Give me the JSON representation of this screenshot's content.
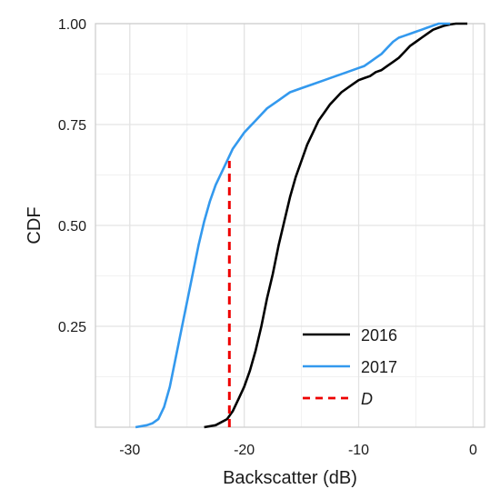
{
  "chart_data": {
    "type": "line",
    "title": "",
    "xlabel": "Backscatter (dB)",
    "ylabel": "CDF",
    "xlim": [
      -33,
      1
    ],
    "ylim": [
      0,
      1
    ],
    "grid": true,
    "legend_position": "bottom-right",
    "x_ticks": [
      -30,
      -20,
      -10,
      0
    ],
    "x_tick_labels": [
      "-30",
      "-20",
      "-10",
      "0"
    ],
    "y_ticks": [
      0.25,
      0.5,
      0.75,
      1.0
    ],
    "y_tick_labels": [
      "0.25",
      "0.50",
      "0.75",
      "1.00"
    ],
    "series": [
      {
        "name": "2016",
        "color": "#000000",
        "style": "solid",
        "x": [
          -23.5,
          -22.5,
          -21.5,
          -21,
          -20.5,
          -20,
          -19.5,
          -19,
          -18.5,
          -18,
          -17.5,
          -17,
          -16.5,
          -16,
          -15.5,
          -15,
          -14.5,
          -14,
          -13.5,
          -13,
          -12.5,
          -12,
          -11.5,
          -11,
          -10.5,
          -10,
          -9.5,
          -9,
          -8.5,
          -8,
          -7.5,
          -7,
          -6.5,
          -6,
          -5.5,
          -5,
          -4.5,
          -4,
          -3.5,
          -3,
          -2.5,
          -2,
          -1.5,
          -1,
          -0.5
        ],
        "y": [
          0.0,
          0.005,
          0.02,
          0.04,
          0.07,
          0.1,
          0.14,
          0.19,
          0.25,
          0.32,
          0.38,
          0.45,
          0.51,
          0.57,
          0.62,
          0.66,
          0.7,
          0.73,
          0.76,
          0.78,
          0.8,
          0.815,
          0.83,
          0.84,
          0.85,
          0.86,
          0.865,
          0.87,
          0.88,
          0.885,
          0.895,
          0.905,
          0.915,
          0.93,
          0.945,
          0.955,
          0.965,
          0.975,
          0.985,
          0.99,
          0.995,
          0.998,
          1.0,
          1.0,
          1.0
        ]
      },
      {
        "name": "2017",
        "color": "#3399ee",
        "style": "solid",
        "x": [
          -29.5,
          -28.5,
          -28,
          -27.5,
          -27,
          -26.5,
          -26,
          -25.5,
          -25,
          -24.5,
          -24,
          -23.5,
          -23,
          -22.5,
          -22,
          -21.5,
          -21,
          -20.5,
          -20,
          -19.5,
          -19,
          -18.5,
          -18,
          -17.5,
          -17,
          -16.5,
          -16,
          -15,
          -14,
          -13,
          -12,
          -11,
          -10,
          -9.5,
          -9,
          -8.5,
          -8,
          -7.5,
          -7,
          -6.5,
          -6,
          -5.5,
          -5,
          -4.5,
          -4,
          -3.5,
          -3,
          -2
        ],
        "y": [
          0.0,
          0.005,
          0.01,
          0.02,
          0.05,
          0.1,
          0.17,
          0.24,
          0.31,
          0.38,
          0.45,
          0.51,
          0.56,
          0.6,
          0.63,
          0.66,
          0.69,
          0.71,
          0.73,
          0.745,
          0.76,
          0.775,
          0.79,
          0.8,
          0.81,
          0.82,
          0.83,
          0.84,
          0.85,
          0.86,
          0.87,
          0.88,
          0.89,
          0.895,
          0.905,
          0.915,
          0.925,
          0.94,
          0.955,
          0.965,
          0.97,
          0.975,
          0.98,
          0.985,
          0.99,
          0.995,
          1.0,
          1.0
        ]
      },
      {
        "name": "D",
        "color": "#ee0000",
        "style": "dashed",
        "x": [
          -21.3,
          -21.3
        ],
        "y": [
          0.0,
          0.66
        ]
      }
    ]
  }
}
